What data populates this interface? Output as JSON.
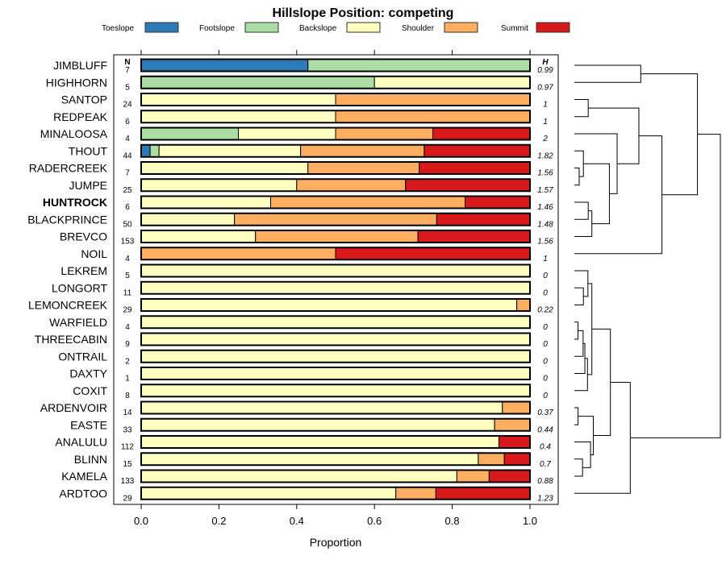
{
  "chart_data": {
    "type": "bar",
    "orientation": "horizontal",
    "stacked": true,
    "title": "Hillslope Position: competing",
    "xlabel": "Proportion",
    "ylabel": "",
    "xlim": [
      0,
      1
    ],
    "xticks": [
      "0.0",
      "0.2",
      "0.4",
      "0.6",
      "0.8",
      "1.0"
    ],
    "xtick_values": [
      0,
      0.2,
      0.4,
      0.6,
      0.8,
      1.0
    ],
    "legend_position": "top",
    "n_header": "N",
    "h_header": "H",
    "categories_legend": [
      {
        "name": "Toeslope",
        "color": "#2C7BB6"
      },
      {
        "name": "Footslope",
        "color": "#ABDDA4"
      },
      {
        "name": "Backslope",
        "color": "#FFFFBF"
      },
      {
        "name": "Shoulder",
        "color": "#FDAE61"
      },
      {
        "name": "Summit",
        "color": "#D7191C"
      }
    ],
    "highlighted_row": "HUNTROCK",
    "rows": [
      {
        "name": "JIMBLUFF",
        "n": "7",
        "h": "0.99",
        "values": [
          0.429,
          0.571,
          0,
          0,
          0
        ]
      },
      {
        "name": "HIGHHORN",
        "n": "5",
        "h": "0.97",
        "values": [
          0,
          0.6,
          0.4,
          0,
          0
        ]
      },
      {
        "name": "SANTOP",
        "n": "24",
        "h": "1",
        "values": [
          0,
          0,
          0.5,
          0.5,
          0
        ]
      },
      {
        "name": "REDPEAK",
        "n": "6",
        "h": "1",
        "values": [
          0,
          0,
          0.5,
          0.5,
          0
        ]
      },
      {
        "name": "MINALOOSA",
        "n": "4",
        "h": "2",
        "values": [
          0,
          0.25,
          0.25,
          0.25,
          0.25
        ]
      },
      {
        "name": "THOUT",
        "n": "44",
        "h": "1.82",
        "values": [
          0.023,
          0.023,
          0.364,
          0.318,
          0.273
        ]
      },
      {
        "name": "RADERCREEK",
        "n": "7",
        "h": "1.56",
        "values": [
          0,
          0,
          0.429,
          0.286,
          0.286
        ]
      },
      {
        "name": "JUMPE",
        "n": "25",
        "h": "1.57",
        "values": [
          0,
          0,
          0.4,
          0.28,
          0.32
        ]
      },
      {
        "name": "HUNTROCK",
        "n": "6",
        "h": "1.46",
        "values": [
          0,
          0,
          0.333,
          0.5,
          0.167
        ]
      },
      {
        "name": "BLACKPRINCE",
        "n": "50",
        "h": "1.48",
        "values": [
          0,
          0,
          0.24,
          0.52,
          0.24
        ]
      },
      {
        "name": "BREVCO",
        "n": "153",
        "h": "1.56",
        "values": [
          0,
          0,
          0.294,
          0.418,
          0.288
        ]
      },
      {
        "name": "NOIL",
        "n": "4",
        "h": "1",
        "values": [
          0,
          0,
          0,
          0.5,
          0.5
        ]
      },
      {
        "name": "LEKREM",
        "n": "5",
        "h": "0",
        "values": [
          0,
          0,
          1,
          0,
          0
        ]
      },
      {
        "name": "LONGORT",
        "n": "11",
        "h": "0",
        "values": [
          0,
          0,
          1,
          0,
          0
        ]
      },
      {
        "name": "LEMONCREEK",
        "n": "29",
        "h": "0.22",
        "values": [
          0,
          0,
          0.966,
          0.034,
          0
        ]
      },
      {
        "name": "WARFIELD",
        "n": "4",
        "h": "0",
        "values": [
          0,
          0,
          1,
          0,
          0
        ]
      },
      {
        "name": "THREECABIN",
        "n": "9",
        "h": "0",
        "values": [
          0,
          0,
          1,
          0,
          0
        ]
      },
      {
        "name": "ONTRAIL",
        "n": "2",
        "h": "0",
        "values": [
          0,
          0,
          1,
          0,
          0
        ]
      },
      {
        "name": "DAXTY",
        "n": "1",
        "h": "0",
        "values": [
          0,
          0,
          1,
          0,
          0
        ]
      },
      {
        "name": "COXIT",
        "n": "8",
        "h": "0",
        "values": [
          0,
          0,
          1,
          0,
          0
        ]
      },
      {
        "name": "ARDENVOIR",
        "n": "14",
        "h": "0.37",
        "values": [
          0,
          0,
          0.929,
          0.071,
          0
        ]
      },
      {
        "name": "EASTE",
        "n": "33",
        "h": "0.44",
        "values": [
          0,
          0,
          0.909,
          0.091,
          0
        ]
      },
      {
        "name": "ANALULU",
        "n": "112",
        "h": "0.4",
        "values": [
          0,
          0,
          0.92,
          0,
          0.08
        ]
      },
      {
        "name": "BLINN",
        "n": "15",
        "h": "0.7",
        "values": [
          0,
          0,
          0.867,
          0.067,
          0.067
        ]
      },
      {
        "name": "KAMELA",
        "n": "133",
        "h": "0.88",
        "values": [
          0,
          0,
          0.812,
          0.083,
          0.105
        ]
      },
      {
        "name": "ARDTOO",
        "n": "29",
        "h": "1.23",
        "values": [
          0,
          0,
          0.655,
          0.103,
          0.241
        ]
      }
    ],
    "dendrogram": {
      "note": "merge tree over row order; height is relative merge height (0 = leaves, 1 = root)",
      "merges": [
        {
          "id": "m1",
          "left": "JIMBLUFF",
          "right": "HIGHHORN",
          "height": 0.455
        },
        {
          "id": "m2",
          "left": "SANTOP",
          "right": "REDPEAK",
          "height": 0.095
        },
        {
          "id": "m3",
          "left": "RADERCREEK",
          "right": "JUMPE",
          "height": 0.033
        },
        {
          "id": "m4",
          "left": "THOUT",
          "right": "m3",
          "height": 0.062
        },
        {
          "id": "m5",
          "left": "HUNTROCK",
          "right": "BLACKPRINCE",
          "height": 0.095
        },
        {
          "id": "m6",
          "left": "m5",
          "right": "BREVCO",
          "height": 0.12
        },
        {
          "id": "m7",
          "left": "m4",
          "right": "m6",
          "height": 0.24
        },
        {
          "id": "m8",
          "left": "MINALOOSA",
          "right": "m7",
          "height": 0.293
        },
        {
          "id": "m9",
          "left": "m2",
          "right": "m8",
          "height": 0.442
        },
        {
          "id": "m10",
          "left": "m9",
          "right": "NOIL",
          "height": 0.6
        },
        {
          "id": "m11",
          "left": "m1",
          "right": "m10",
          "height": 0.843
        },
        {
          "id": "m12",
          "left": "LONGORT",
          "right": "LEMONCREEK",
          "height": 0.062
        },
        {
          "id": "m13",
          "left": "LEKREM",
          "right": "m12",
          "height": 0.093
        },
        {
          "id": "m14",
          "left": "WARFIELD",
          "right": "THREECABIN",
          "height": 0.025
        },
        {
          "id": "m15",
          "left": "m14",
          "right": "ONTRAIL",
          "height": 0.06
        },
        {
          "id": "m16",
          "left": "m15",
          "right": "DAXTY",
          "height": 0.072
        },
        {
          "id": "m17",
          "left": "m16",
          "right": "COXIT",
          "height": 0.09
        },
        {
          "id": "m18",
          "left": "m13",
          "right": "m17",
          "height": 0.12
        },
        {
          "id": "m19",
          "left": "ARDENVOIR",
          "right": "EASTE",
          "height": 0.025
        },
        {
          "id": "m20",
          "left": "BLINN",
          "right": "KAMELA",
          "height": 0.056
        },
        {
          "id": "m21",
          "left": "ANALULU",
          "right": "m20",
          "height": 0.111
        },
        {
          "id": "m22",
          "left": "m19",
          "right": "m21",
          "height": 0.13
        },
        {
          "id": "m23",
          "left": "m18",
          "right": "m22",
          "height": 0.247
        },
        {
          "id": "m24",
          "left": "m23",
          "right": "ARDTOO",
          "height": 0.383
        },
        {
          "id": "m25",
          "left": "m11",
          "right": "m24",
          "height": 1.0
        }
      ]
    }
  }
}
